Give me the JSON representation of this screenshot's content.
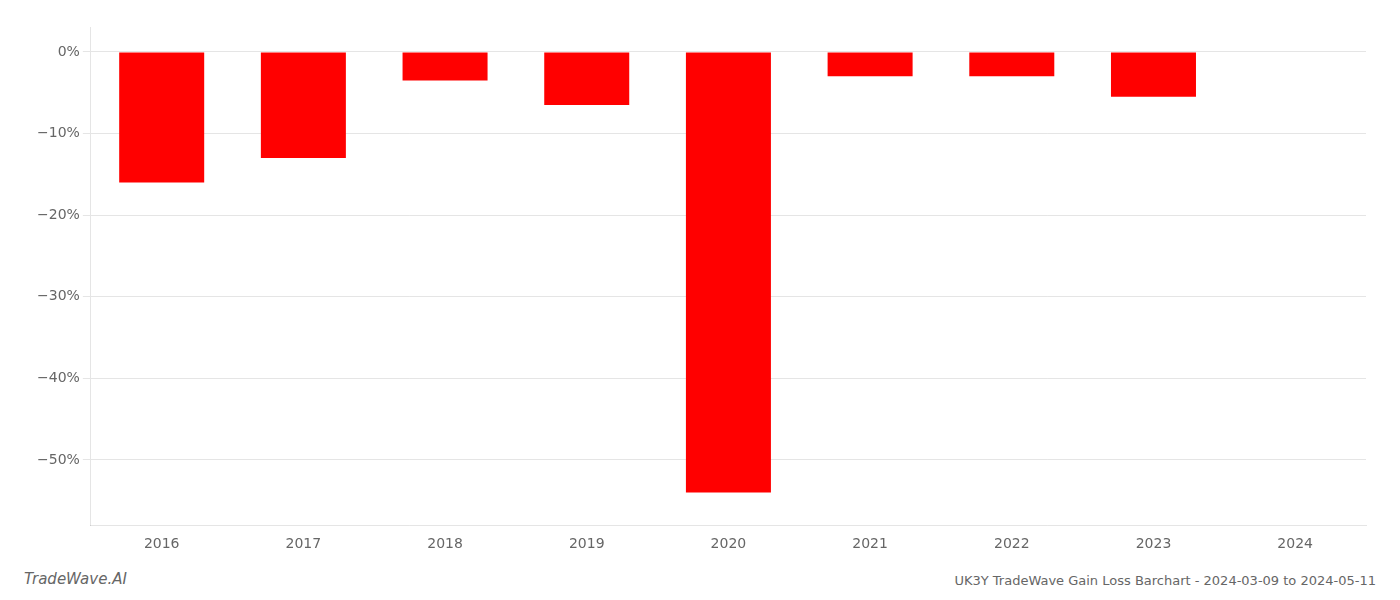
{
  "chart_data": {
    "type": "bar",
    "categories": [
      "2016",
      "2017",
      "2018",
      "2019",
      "2020",
      "2021",
      "2022",
      "2023",
      "2024"
    ],
    "values": [
      -16.0,
      -13.0,
      -3.5,
      -6.5,
      -54.0,
      -3.0,
      -3.0,
      -5.5,
      null
    ],
    "color": "#ff0000",
    "ylim": [
      -58,
      3
    ],
    "yticks": [
      {
        "value": 0,
        "label": "0%"
      },
      {
        "value": -10,
        "label": "−10%"
      },
      {
        "value": -20,
        "label": "−20%"
      },
      {
        "value": -30,
        "label": "−30%"
      },
      {
        "value": -40,
        "label": "−40%"
      },
      {
        "value": -50,
        "label": "−50%"
      }
    ],
    "grid": true,
    "annotations": [
      "TradeWave.AI",
      "UK3Y TradeWave Gain Loss Barchart - 2024-03-09 to 2024-05-11"
    ]
  }
}
